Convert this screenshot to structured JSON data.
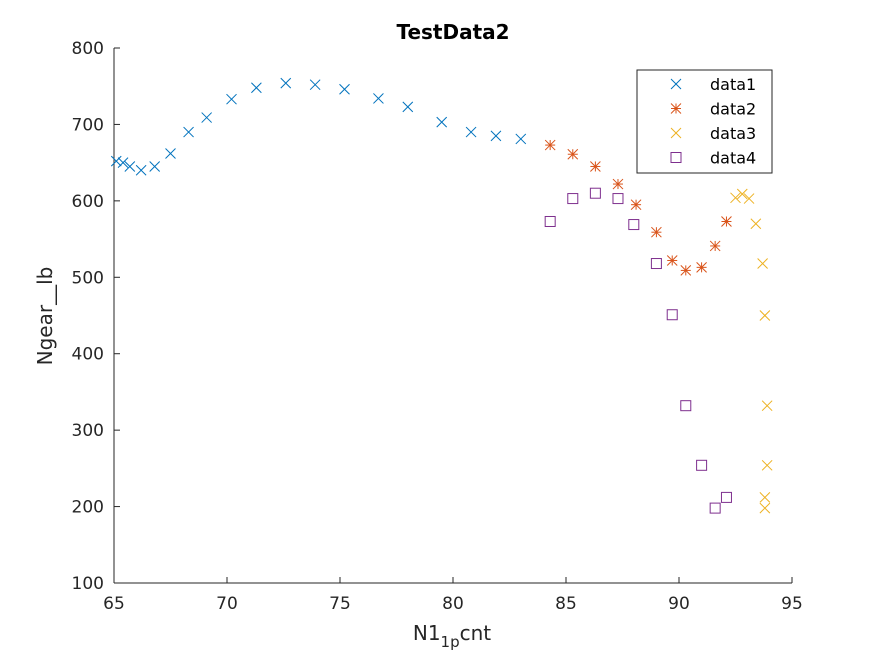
{
  "chart_data": {
    "type": "scatter",
    "title": "TestData2",
    "xlabel": {
      "main": "N1",
      "sub": "1p",
      "tail": "cnt"
    },
    "ylabel": "Ngear__lb",
    "xlim": [
      65,
      95
    ],
    "ylim": [
      100,
      800
    ],
    "xticks": [
      65,
      70,
      75,
      80,
      85,
      90,
      95
    ],
    "yticks": [
      100,
      200,
      300,
      400,
      500,
      600,
      700,
      800
    ],
    "grid": false,
    "legend_position": "top-right",
    "series": [
      {
        "name": "data1",
        "marker": "x",
        "color": "#0072BD",
        "points": [
          [
            65.1,
            652
          ],
          [
            65.4,
            650
          ],
          [
            65.7,
            645
          ],
          [
            66.2,
            640
          ],
          [
            66.8,
            645
          ],
          [
            67.5,
            662
          ],
          [
            68.3,
            690
          ],
          [
            69.1,
            709
          ],
          [
            70.2,
            733
          ],
          [
            71.3,
            748
          ],
          [
            72.6,
            754
          ],
          [
            73.9,
            752
          ],
          [
            75.2,
            746
          ],
          [
            76.7,
            734
          ],
          [
            78.0,
            723
          ],
          [
            79.5,
            703
          ],
          [
            80.8,
            690
          ],
          [
            81.9,
            685
          ],
          [
            83.0,
            681
          ]
        ]
      },
      {
        "name": "data2",
        "marker": "asterisk",
        "color": "#D95319",
        "points": [
          [
            84.3,
            673
          ],
          [
            85.3,
            661
          ],
          [
            86.3,
            645
          ],
          [
            87.3,
            622
          ],
          [
            88.1,
            595
          ],
          [
            89.0,
            559
          ],
          [
            89.7,
            522
          ],
          [
            90.3,
            509
          ],
          [
            91.0,
            513
          ],
          [
            91.6,
            541
          ],
          [
            92.1,
            573
          ]
        ]
      },
      {
        "name": "data3",
        "marker": "x",
        "color": "#EDB120",
        "points": [
          [
            92.5,
            604
          ],
          [
            92.8,
            609
          ],
          [
            93.1,
            603
          ],
          [
            93.4,
            570
          ],
          [
            93.7,
            518
          ],
          [
            93.8,
            450
          ],
          [
            93.9,
            332
          ],
          [
            93.9,
            254
          ],
          [
            93.8,
            212
          ],
          [
            93.8,
            198
          ]
        ]
      },
      {
        "name": "data4",
        "marker": "square",
        "color": "#7E2F8E",
        "points": [
          [
            84.3,
            573
          ],
          [
            85.3,
            603
          ],
          [
            86.3,
            610
          ],
          [
            87.3,
            603
          ],
          [
            88.0,
            569
          ],
          [
            89.0,
            518
          ],
          [
            89.7,
            451
          ],
          [
            90.3,
            332
          ],
          [
            91.0,
            254
          ],
          [
            91.6,
            198
          ],
          [
            92.1,
            212
          ]
        ]
      }
    ]
  }
}
